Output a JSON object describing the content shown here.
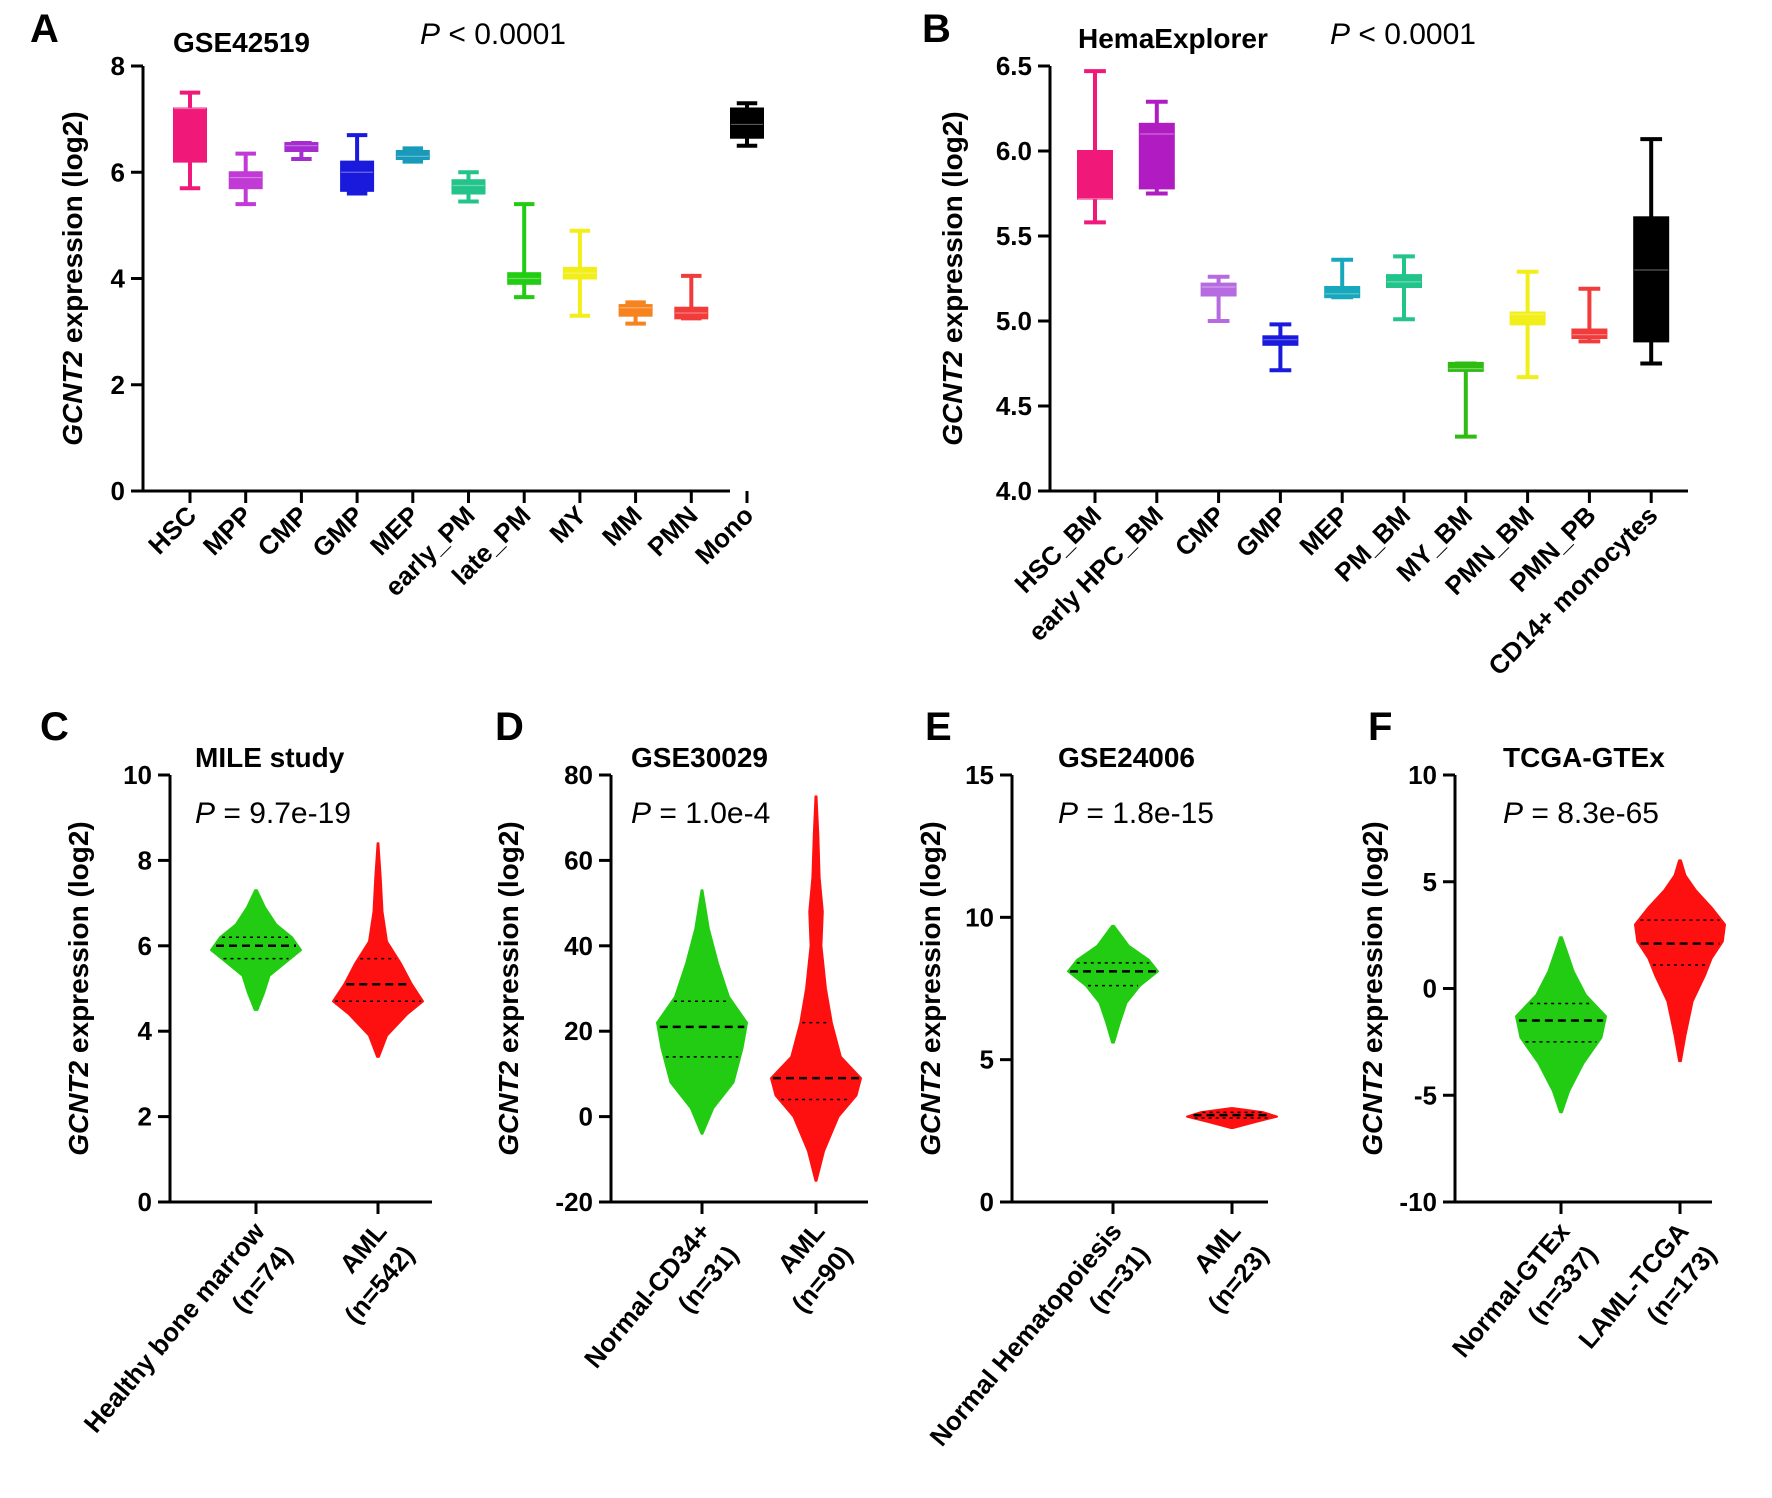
{
  "colors": {
    "HSC": "#f0197a",
    "MPP": "#c13ad6",
    "CMP": "#a52dd0",
    "GMP": "#1a1add",
    "MEP": "#1a9aba",
    "early_PM": "#22c489",
    "late_PM": "#22cc12",
    "MY": "#f2ee1a",
    "MM": "#f7831e",
    "PMN": "#f23b3b",
    "Mono": "#000000",
    "HSC_BM": "#f0197a",
    "early_HPC_BM": "#b01cc2",
    "CMP_B": "#b66be0",
    "GMP_B": "#1a1add",
    "MEP_B": "#18a8be",
    "PM_BM": "#22c489",
    "MY_BM": "#2ebc12",
    "PMN_BM": "#f2ee1a",
    "PMN_PB": "#f23b3b",
    "CD14": "#000000",
    "normal": "#22cc12",
    "aml": "#ff1010"
  },
  "chart_data": [
    {
      "id": "A",
      "panel_label": "A",
      "type": "box",
      "title": "GSE42519",
      "p_prefix": "P",
      "p_suffix": " < 0.0001",
      "ylabel_italic": "GCNT2",
      "ylabel_rest": " expression (log2)",
      "ylim": [
        0,
        8
      ],
      "yticks": [
        "0",
        "2",
        "4",
        "6",
        "8"
      ],
      "ytick_values": [
        0,
        2,
        4,
        6,
        8
      ],
      "categories": [
        "HSC",
        "MPP",
        "CMP",
        "GMP",
        "MEP",
        "early_PM",
        "late_PM",
        "MY",
        "MM",
        "PMN",
        "Mono"
      ],
      "series": [
        {
          "name": "HSC",
          "min": 5.7,
          "q1": 6.2,
          "median": 7.2,
          "q3": 7.2,
          "max": 7.5,
          "color_key": "HSC"
        },
        {
          "name": "MPP",
          "min": 5.4,
          "q1": 5.7,
          "median": 5.9,
          "q3": 6.0,
          "max": 6.35,
          "color_key": "MPP"
        },
        {
          "name": "CMP",
          "min": 6.25,
          "q1": 6.4,
          "median": 6.5,
          "q3": 6.55,
          "max": 6.55,
          "color_key": "CMP"
        },
        {
          "name": "GMP",
          "min": 5.6,
          "q1": 5.65,
          "median": 6.0,
          "q3": 6.2,
          "max": 6.7,
          "color_key": "GMP"
        },
        {
          "name": "MEP",
          "min": 6.2,
          "q1": 6.25,
          "median": 6.3,
          "q3": 6.4,
          "max": 6.45,
          "color_key": "MEP"
        },
        {
          "name": "early_PM",
          "min": 5.45,
          "q1": 5.6,
          "median": 5.75,
          "q3": 5.85,
          "max": 6.0,
          "color_key": "early_PM"
        },
        {
          "name": "late_PM",
          "min": 3.65,
          "q1": 3.9,
          "median": 4.0,
          "q3": 4.1,
          "max": 5.4,
          "color_key": "late_PM"
        },
        {
          "name": "MY",
          "min": 3.3,
          "q1": 4.0,
          "median": 4.1,
          "q3": 4.2,
          "max": 4.9,
          "color_key": "MY"
        },
        {
          "name": "MM",
          "min": 3.15,
          "q1": 3.3,
          "median": 3.45,
          "q3": 3.5,
          "max": 3.55,
          "color_key": "MM"
        },
        {
          "name": "PMN",
          "min": 3.25,
          "q1": 3.25,
          "median": 3.35,
          "q3": 3.45,
          "max": 4.05,
          "color_key": "PMN"
        },
        {
          "name": "Mono",
          "min": 6.5,
          "q1": 6.65,
          "median": 6.9,
          "q3": 7.2,
          "max": 7.3,
          "color_key": "Mono"
        }
      ]
    },
    {
      "id": "B",
      "panel_label": "B",
      "type": "box",
      "title": "HemaExplorer",
      "p_prefix": "P",
      "p_suffix": " < 0.0001",
      "ylabel_italic": "GCNT2",
      "ylabel_rest": "  expression (log2)",
      "ylim": [
        4.0,
        6.5
      ],
      "yticks": [
        "4.0",
        "4.5",
        "5.0",
        "5.5",
        "6.0",
        "6.5"
      ],
      "ytick_values": [
        4.0,
        4.5,
        5.0,
        5.5,
        6.0,
        6.5
      ],
      "categories": [
        "HSC_BM",
        "early HPC_BM",
        "CMP",
        "GMP",
        "MEP",
        "PM_BM",
        "MY_BM",
        "PMN_BM",
        "PMN_PB",
        "CD14+ monocytes"
      ],
      "series": [
        {
          "name": "HSC_BM",
          "min": 5.58,
          "q1": 5.72,
          "median": 5.72,
          "q3": 6.0,
          "max": 6.47,
          "color_key": "HSC_BM"
        },
        {
          "name": "early HPC_BM",
          "min": 5.75,
          "q1": 5.78,
          "median": 6.1,
          "q3": 6.16,
          "max": 6.29,
          "color_key": "early_HPC_BM"
        },
        {
          "name": "CMP",
          "min": 5.0,
          "q1": 5.15,
          "median": 5.2,
          "q3": 5.22,
          "max": 5.26,
          "color_key": "CMP_B"
        },
        {
          "name": "GMP",
          "min": 4.71,
          "q1": 4.86,
          "median": 4.89,
          "q3": 4.91,
          "max": 4.98,
          "color_key": "GMP_B"
        },
        {
          "name": "MEP",
          "min": 5.14,
          "q1": 5.14,
          "median": 5.16,
          "q3": 5.2,
          "max": 5.36,
          "color_key": "MEP_B"
        },
        {
          "name": "PM_BM",
          "min": 5.01,
          "q1": 5.2,
          "median": 5.23,
          "q3": 5.27,
          "max": 5.38,
          "color_key": "PM_BM"
        },
        {
          "name": "MY_BM",
          "min": 4.32,
          "q1": 4.71,
          "median": 4.72,
          "q3": 4.75,
          "max": 4.75,
          "color_key": "MY_BM"
        },
        {
          "name": "PMN_BM",
          "min": 4.67,
          "q1": 4.98,
          "median": 5.04,
          "q3": 5.05,
          "max": 5.29,
          "color_key": "PMN_BM"
        },
        {
          "name": "PMN_PB",
          "min": 4.88,
          "q1": 4.9,
          "median": 4.92,
          "q3": 4.95,
          "max": 5.19,
          "color_key": "PMN_PB"
        },
        {
          "name": "CD14+ monocytes",
          "min": 4.75,
          "q1": 4.88,
          "median": 5.3,
          "q3": 5.61,
          "max": 6.07,
          "color_key": "CD14"
        }
      ]
    },
    {
      "id": "C",
      "panel_label": "C",
      "type": "violin",
      "title": "MILE study",
      "p_prefix": "P",
      "p_suffix": " = 9.7e-19",
      "ylabel_italic": "GCNT2",
      "ylabel_rest": " expression (log2)",
      "ylim": [
        0,
        10
      ],
      "yticks": [
        "0",
        "2",
        "4",
        "6",
        "8",
        "10"
      ],
      "ytick_values": [
        0,
        2,
        4,
        6,
        8,
        10
      ],
      "categories": [
        "Healthy bone marrow|(n=74)",
        "AML|(n=542)"
      ],
      "series": [
        {
          "name": "Healthy bone marrow",
          "n": 74,
          "min": 4.5,
          "max": 7.3,
          "q1": 5.7,
          "median": 6.0,
          "q3": 6.2,
          "profile": [
            [
              4.5,
              0.03
            ],
            [
              4.9,
              0.18
            ],
            [
              5.3,
              0.3
            ],
            [
              5.6,
              0.65
            ],
            [
              5.9,
              1.0
            ],
            [
              6.2,
              0.8
            ],
            [
              6.5,
              0.45
            ],
            [
              6.9,
              0.2
            ],
            [
              7.3,
              0.02
            ]
          ],
          "color_key": "normal"
        },
        {
          "name": "AML",
          "n": 542,
          "min": 3.4,
          "max": 8.4,
          "q1": 4.7,
          "median": 5.1,
          "q3": 5.7,
          "profile": [
            [
              3.4,
              0.02
            ],
            [
              3.9,
              0.2
            ],
            [
              4.4,
              0.65
            ],
            [
              4.7,
              1.0
            ],
            [
              5.1,
              0.75
            ],
            [
              5.6,
              0.5
            ],
            [
              6.1,
              0.2
            ],
            [
              6.8,
              0.1
            ],
            [
              7.6,
              0.06
            ],
            [
              8.4,
              0.01
            ]
          ],
          "color_key": "aml"
        }
      ]
    },
    {
      "id": "D",
      "panel_label": "D",
      "type": "violin",
      "title": "GSE30029",
      "p_prefix": "P",
      "p_suffix": " = 1.0e-4",
      "ylabel_italic": "GCNT2",
      "ylabel_rest": " expression (log2)",
      "ylim": [
        -20,
        80
      ],
      "yticks": [
        "-20",
        "0",
        "20",
        "40",
        "60",
        "80"
      ],
      "ytick_values": [
        -20,
        0,
        20,
        40,
        60,
        80
      ],
      "categories": [
        "Normal-CD34+|(n=31)",
        "AML|(n=90)"
      ],
      "series": [
        {
          "name": "Normal-CD34+",
          "n": 31,
          "min": -4,
          "max": 53,
          "q1": 14,
          "median": 21,
          "q3": 27,
          "profile": [
            [
              -4,
              0.01
            ],
            [
              2,
              0.25
            ],
            [
              8,
              0.7
            ],
            [
              16,
              0.9
            ],
            [
              22,
              1.0
            ],
            [
              28,
              0.6
            ],
            [
              36,
              0.35
            ],
            [
              44,
              0.15
            ],
            [
              53,
              0.01
            ]
          ],
          "color_key": "normal"
        },
        {
          "name": "AML",
          "n": 90,
          "min": -15,
          "max": 75,
          "q1": 4,
          "median": 9,
          "q3": 22,
          "profile": [
            [
              -15,
              0.01
            ],
            [
              -8,
              0.18
            ],
            [
              0,
              0.5
            ],
            [
              5,
              0.9
            ],
            [
              9,
              1.0
            ],
            [
              14,
              0.55
            ],
            [
              22,
              0.35
            ],
            [
              30,
              0.22
            ],
            [
              40,
              0.12
            ],
            [
              48,
              0.15
            ],
            [
              56,
              0.08
            ],
            [
              66,
              0.05
            ],
            [
              75,
              0.01
            ]
          ],
          "color_key": "aml"
        }
      ]
    },
    {
      "id": "E",
      "panel_label": "E",
      "type": "violin",
      "title": "GSE24006",
      "p_prefix": "P",
      "p_suffix": " = 1.8e-15",
      "ylabel_italic": "GCNT2",
      "ylabel_rest": " expression (log2)",
      "ylim": [
        0,
        15
      ],
      "yticks": [
        "0",
        "5",
        "10",
        "15"
      ],
      "ytick_values": [
        0,
        5,
        10,
        15
      ],
      "categories": [
        "Normal Hematopoiesis|(n=31)",
        "AML|(n=23)"
      ],
      "series": [
        {
          "name": "Normal Hematopoiesis",
          "n": 31,
          "min": 5.6,
          "max": 9.7,
          "q1": 7.6,
          "median": 8.1,
          "q3": 8.4,
          "profile": [
            [
              5.6,
              0.02
            ],
            [
              6.3,
              0.15
            ],
            [
              7.0,
              0.3
            ],
            [
              7.6,
              0.6
            ],
            [
              8.1,
              1.0
            ],
            [
              8.5,
              0.8
            ],
            [
              9.0,
              0.35
            ],
            [
              9.7,
              0.02
            ]
          ],
          "color_key": "normal"
        },
        {
          "name": "AML",
          "n": 23,
          "min": 2.6,
          "max": 3.3,
          "q1": 2.95,
          "median": 3.05,
          "q3": 3.15,
          "profile": [
            [
              2.6,
              0.02
            ],
            [
              2.8,
              0.5
            ],
            [
              3.0,
              1.0
            ],
            [
              3.15,
              0.7
            ],
            [
              3.3,
              0.02
            ]
          ],
          "color_key": "aml"
        }
      ]
    },
    {
      "id": "F",
      "panel_label": "F",
      "type": "violin",
      "title": "TCGA-GTEx",
      "p_prefix": "P",
      "p_suffix": " = 8.3e-65",
      "ylabel_italic": "GCNT2",
      "ylabel_rest": " expression (log2)",
      "ylim": [
        -10,
        10
      ],
      "yticks": [
        "-10",
        "-5",
        "0",
        "5",
        "10"
      ],
      "ytick_values": [
        -10,
        -5,
        0,
        5,
        10
      ],
      "categories": [
        "Normal-GTEx|(n=337)",
        "LAML-TCGA|(n=173)"
      ],
      "series": [
        {
          "name": "Normal-GTEx",
          "n": 337,
          "min": -5.8,
          "max": 2.4,
          "q1": -2.5,
          "median": -1.5,
          "q3": -0.7,
          "profile": [
            [
              -5.8,
              0.02
            ],
            [
              -4.8,
              0.18
            ],
            [
              -3.5,
              0.5
            ],
            [
              -2.3,
              0.9
            ],
            [
              -1.3,
              1.0
            ],
            [
              -0.3,
              0.55
            ],
            [
              0.8,
              0.28
            ],
            [
              1.6,
              0.15
            ],
            [
              2.4,
              0.02
            ]
          ],
          "color_key": "normal"
        },
        {
          "name": "LAML-TCGA",
          "n": 173,
          "min": -3.4,
          "max": 6.0,
          "q1": 1.1,
          "median": 2.1,
          "q3": 3.2,
          "profile": [
            [
              -3.4,
              0.02
            ],
            [
              -2.2,
              0.12
            ],
            [
              -0.6,
              0.28
            ],
            [
              0.6,
              0.55
            ],
            [
              1.4,
              0.7
            ],
            [
              2.2,
              0.95
            ],
            [
              3.0,
              1.0
            ],
            [
              3.8,
              0.7
            ],
            [
              4.6,
              0.35
            ],
            [
              5.3,
              0.12
            ],
            [
              6.0,
              0.02
            ]
          ],
          "color_key": "aml"
        }
      ]
    }
  ]
}
